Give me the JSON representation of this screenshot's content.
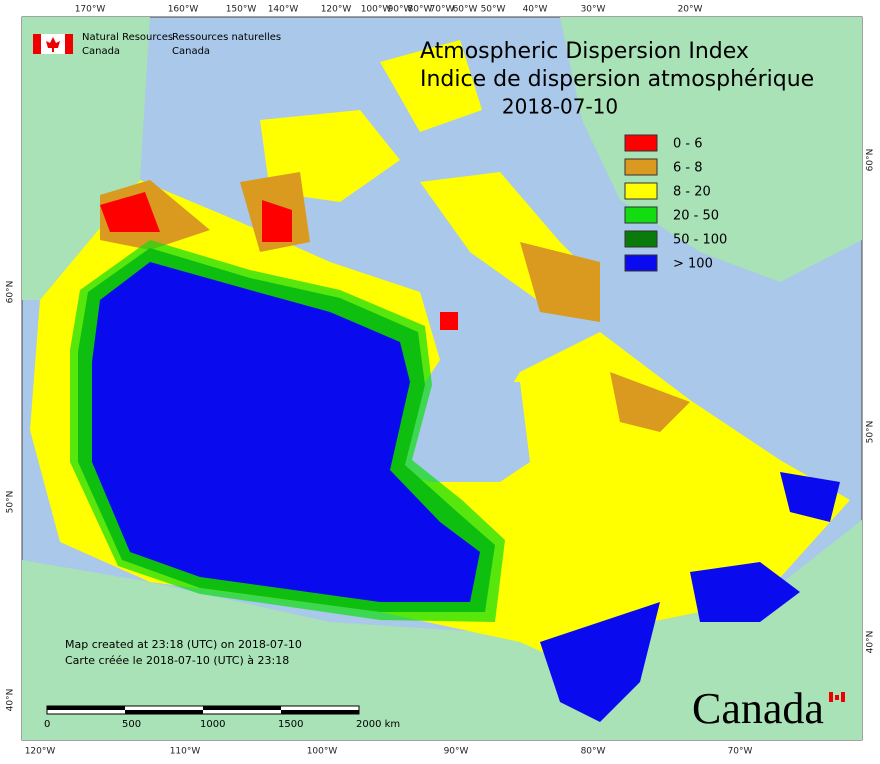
{
  "logo": {
    "english": [
      "Natural Resources",
      "Canada"
    ],
    "french": [
      "Ressources naturelles",
      "Canada"
    ]
  },
  "title": {
    "line1": "Atmospheric Dispersion Index",
    "line2": "Indice de dispersion atmosphérique",
    "date": "2018-07-10"
  },
  "legend": [
    {
      "label": "0 - 6",
      "color": "#ff0000"
    },
    {
      "label": "6 - 8",
      "color": "#d99a1f"
    },
    {
      "label": "8 - 20",
      "color": "#ffff00"
    },
    {
      "label": "20 - 50",
      "color": "#11dd11"
    },
    {
      "label": "50 - 100",
      "color": "#0a7a0a"
    },
    {
      "label": "> 100",
      "color": "#0a0aee"
    }
  ],
  "graticule": {
    "top": [
      "170°W",
      "160°W",
      "150°W",
      "140°W",
      "120°W",
      "100°W",
      "90°W",
      "80°W",
      "70°W",
      "60°W",
      "50°W",
      "40°W",
      "30°W",
      "20°W"
    ],
    "bottom": [
      "120°W",
      "110°W",
      "100°W",
      "90°W",
      "80°W",
      "70°W"
    ],
    "left": [
      "60°N",
      "50°N",
      "40°N"
    ],
    "right": [
      "60°N",
      "50°N",
      "40°N"
    ]
  },
  "credits": [
    "Map created at 23:18 (UTC) on 2018-07-10",
    "Carte créée le 2018-07-10 (UTC) à 23:18"
  ],
  "scale_bar": [
    "0",
    "500",
    "1000",
    "1500",
    "2000 km"
  ],
  "wordmark": "Canada"
}
